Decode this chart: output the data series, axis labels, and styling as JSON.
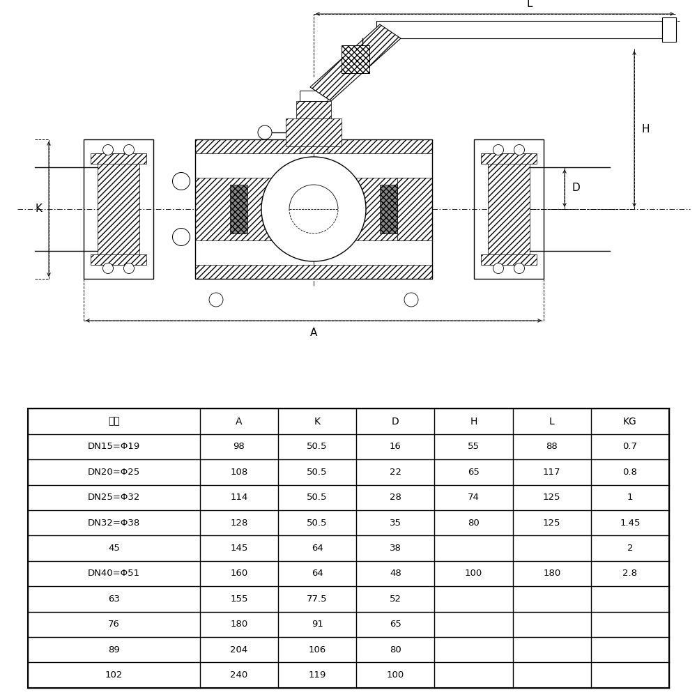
{
  "table_headers": [
    "规格",
    "A",
    "K",
    "D",
    "H",
    "L",
    "KG"
  ],
  "table_rows": [
    [
      "DN15=Φ19",
      "98",
      "50.5",
      "16",
      "55",
      "88",
      "0.7"
    ],
    [
      "DN20=Φ25",
      "108",
      "50.5",
      "22",
      "65",
      "117",
      "0.8"
    ],
    [
      "DN25=Φ32",
      "114",
      "50.5",
      "28",
      "74",
      "125",
      "1"
    ],
    [
      "DN32=Φ38",
      "128",
      "50.5",
      "35",
      "80",
      "125",
      "1.45"
    ],
    [
      "45",
      "145",
      "64",
      "38",
      "",
      "",
      "2"
    ],
    [
      "DN40=Φ51",
      "160",
      "64",
      "48",
      "100",
      "180",
      "2.8"
    ],
    [
      "63",
      "155",
      "77.5",
      "52",
      "",
      "",
      ""
    ],
    [
      "76",
      "180",
      "91",
      "65",
      "",
      "",
      ""
    ],
    [
      "89",
      "204",
      "106",
      "80",
      "",
      "",
      ""
    ],
    [
      "102",
      "240",
      "119",
      "100",
      "",
      "",
      ""
    ]
  ],
  "bg_color": "#ffffff",
  "watermark_color": "#b8d8f0",
  "col_widths_rel": [
    2.2,
    1.0,
    1.0,
    1.0,
    1.0,
    1.0,
    1.0
  ]
}
